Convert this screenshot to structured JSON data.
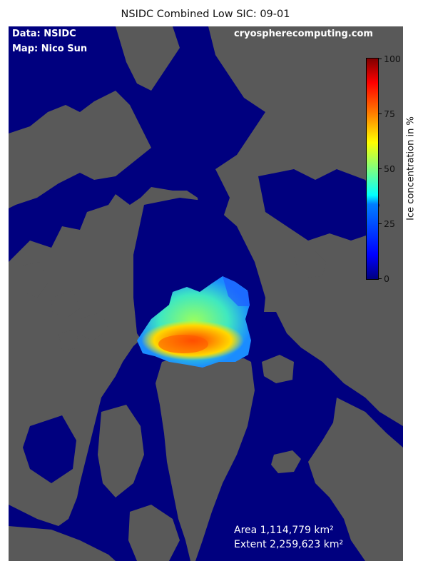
{
  "title": "NSIDC Combined Low SIC: 09-01",
  "credits": {
    "data": "Data: NSIDC",
    "map": "Map: Nico Sun",
    "site": "cryospherecomputing.com"
  },
  "stats": {
    "area": "Area 1,114,779 km²",
    "extent": "Extent 2,259,623 km²"
  },
  "colorbar": {
    "label": "Ice concentration in %",
    "ticks": [
      "0",
      "25",
      "50",
      "75",
      "100"
    ],
    "colormap": "jet"
  },
  "colors": {
    "ocean": "#00007f",
    "land": "#595959"
  }
}
